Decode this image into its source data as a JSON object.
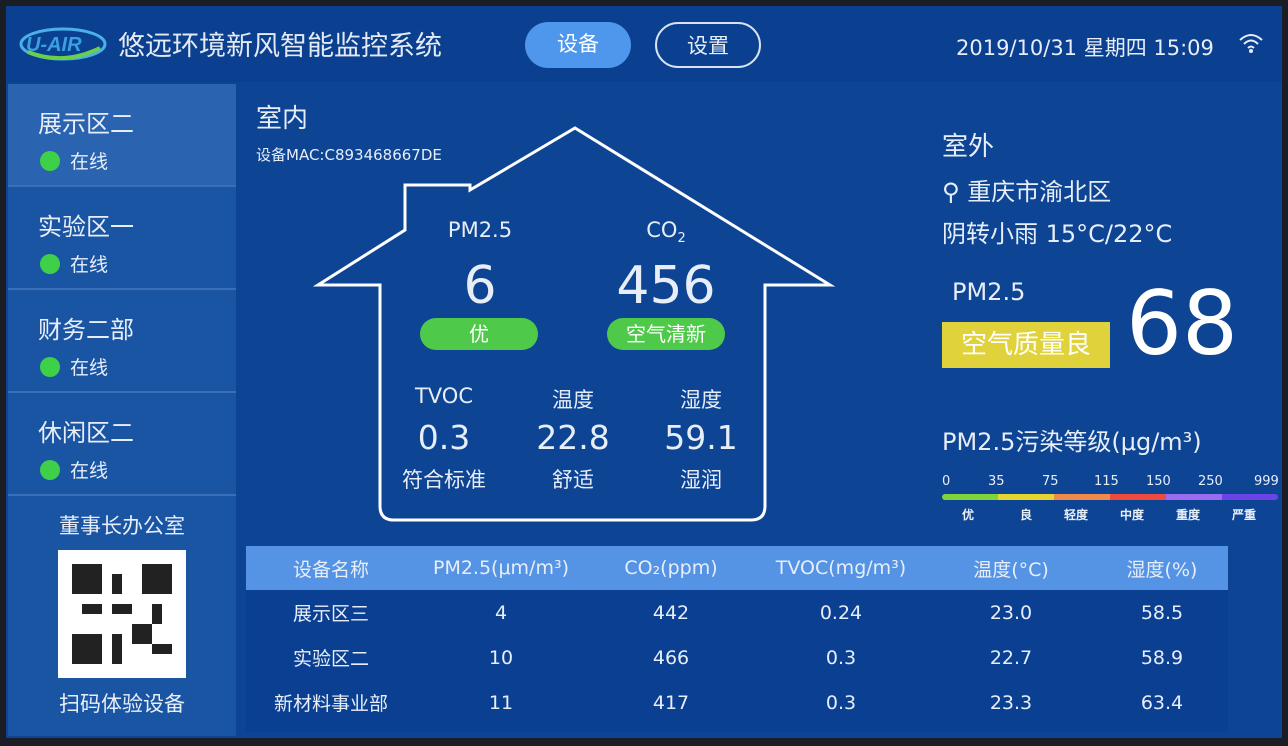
{
  "header": {
    "logo_text": "U-AIR",
    "title": "悠远环境新风智能监控系统",
    "tabs": [
      {
        "label": "设备",
        "active": true
      },
      {
        "label": "设置",
        "active": false
      }
    ],
    "datetime": "2019/10/31 星期四 15:09",
    "wifi_icon": "wifi-icon"
  },
  "sidebar": {
    "items": [
      {
        "name": "展示区二",
        "status": "在线"
      },
      {
        "name": "实验区一",
        "status": "在线"
      },
      {
        "name": "财务二部",
        "status": "在线"
      },
      {
        "name": "休闲区二",
        "status": "在线"
      }
    ],
    "qr_title": "董事长办公室",
    "qr_caption": "扫码体验设备"
  },
  "indoor": {
    "title": "室内",
    "mac": "设备MAC:C893468667DE",
    "pm25": {
      "label": "PM2.5",
      "value": "6",
      "status": "优"
    },
    "co2": {
      "label": "CO",
      "sub": "2",
      "value": "456",
      "status": "空气清新"
    },
    "tvoc": {
      "label": "TVOC",
      "value": "0.3",
      "status": "符合标准"
    },
    "temp": {
      "label": "温度",
      "value": "22.8",
      "status": "舒适"
    },
    "humidity": {
      "label": "湿度",
      "value": "59.1",
      "status": "湿润"
    }
  },
  "outdoor": {
    "title": "室外",
    "location": "重庆市渝北区",
    "weather": "阴转小雨 15°C/22°C",
    "pm25_label": "PM2.5",
    "aq_status": "空气质量良",
    "pm25_value": "68",
    "scale_title": "PM2.5污染等级(μg/m³)",
    "scale_ticks": [
      "0",
      "35",
      "75",
      "115",
      "150",
      "250",
      "999"
    ],
    "scale_levels": [
      "优",
      "良",
      "轻度",
      "中度",
      "重度",
      "严重"
    ],
    "scale_colors": [
      "#7ed43a",
      "#e4d62e",
      "#f08a4a",
      "#ee4a3e",
      "#9a6cf0",
      "#6a44e6"
    ]
  },
  "table": {
    "headers": [
      "设备名称",
      "PM2.5(μm/m³)",
      "CO₂(ppm)",
      "TVOC(mg/m³)",
      "温度(°C)",
      "湿度(%)"
    ],
    "rows": [
      [
        "展示区三",
        "4",
        "442",
        "0.24",
        "23.0",
        "58.5"
      ],
      [
        "实验区二",
        "10",
        "466",
        "0.3",
        "22.7",
        "58.9"
      ],
      [
        "新材料事业部",
        "11",
        "417",
        "0.3",
        "23.3",
        "63.4"
      ]
    ]
  }
}
